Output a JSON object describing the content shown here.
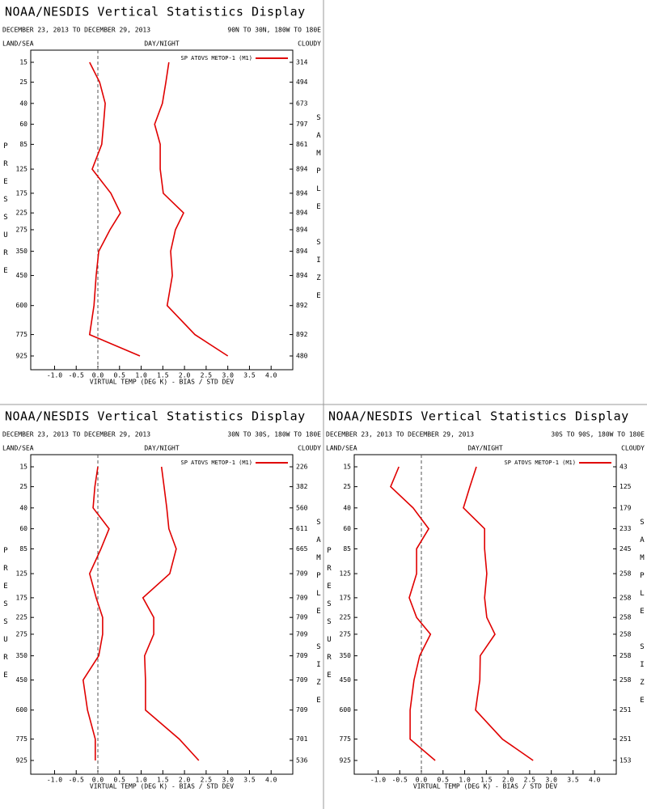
{
  "chart_data": [
    {
      "type": "line",
      "title": "NOAA/NESDIS Vertical Statistics Display",
      "subtitle": "DECEMBER 23, 2013 TO DECEMBER 29, 2013",
      "region": "90N TO 30N, 180W TO 180E",
      "land_sea": "LAND/SEA",
      "day_night": "DAY/NIGHT",
      "cloudy": "CLOUDY",
      "ylabel": "PRESSURE",
      "y2label": "SAMPLE SIZE",
      "xlabel": "VIRTUAL TEMP (DEG K) - BIAS / STD DEV",
      "legend": "SP ATOVS METOP-1 (M1)",
      "y_scale": "power",
      "y_exponent": 0.3,
      "categories": [
        15,
        25,
        40,
        60,
        85,
        125,
        175,
        225,
        275,
        350,
        450,
        600,
        775,
        925
      ],
      "sample_size": [
        314,
        494,
        673,
        797,
        861,
        894,
        894,
        894,
        894,
        894,
        894,
        892,
        892,
        480
      ],
      "xlim": [
        -1.55,
        4.5
      ],
      "xticks": [
        {
          "value": -1,
          "label": "-1.0"
        },
        {
          "value": -0.5,
          "label": "-0.5"
        },
        {
          "value": 0,
          "label": "0.0"
        },
        {
          "value": 0.5,
          "label": "0.5"
        },
        {
          "value": 1,
          "label": "1.0"
        },
        {
          "value": 1.5,
          "label": "1.5"
        },
        {
          "value": 2,
          "label": "2.0"
        },
        {
          "value": 2.5,
          "label": "2.5"
        },
        {
          "value": 3,
          "label": "3.0"
        },
        {
          "value": 3.5,
          "label": "3.5"
        },
        {
          "value": 4,
          "label": "4.0"
        }
      ],
      "zero_line": true,
      "series": [
        {
          "color": "#e00000",
          "values": [
            -0.19,
            0.04,
            0.17,
            0.13,
            0.09,
            -0.13,
            0.3,
            0.52,
            0.28,
            0.02,
            -0.04,
            -0.09,
            -0.19,
            0.97
          ]
        },
        {
          "color": "#e00000",
          "values": [
            1.64,
            1.57,
            1.49,
            1.31,
            1.44,
            1.44,
            1.51,
            1.98,
            1.79,
            1.68,
            1.72,
            1.6,
            2.24,
            3.0
          ]
        }
      ]
    },
    {
      "type": "line",
      "title": "NOAA/NESDIS Vertical Statistics Display",
      "subtitle": "DECEMBER 23, 2013 TO DECEMBER 29, 2013",
      "region": "30N TO 30S, 180W TO 180E",
      "land_sea": "LAND/SEA",
      "day_night": "DAY/NIGHT",
      "cloudy": "CLOUDY",
      "ylabel": "PRESSURE",
      "y2label": "SAMPLE SIZE",
      "xlabel": "VIRTUAL TEMP (DEG K) - BIAS / STD DEV",
      "legend": "SP ATOVS METOP-1 (M1)",
      "y_scale": "power",
      "y_exponent": 0.3,
      "categories": [
        15,
        25,
        40,
        60,
        85,
        125,
        175,
        225,
        275,
        350,
        450,
        600,
        775,
        925
      ],
      "sample_size": [
        226,
        382,
        560,
        611,
        665,
        709,
        709,
        709,
        709,
        709,
        709,
        709,
        701,
        536
      ],
      "xlim": [
        -1.55,
        4.5
      ],
      "xticks": [
        {
          "value": -1,
          "label": "-1.0"
        },
        {
          "value": -0.5,
          "label": "-0.5"
        },
        {
          "value": 0,
          "label": "0.0"
        },
        {
          "value": 0.5,
          "label": "0.5"
        },
        {
          "value": 1,
          "label": "1.0"
        },
        {
          "value": 1.5,
          "label": "1.5"
        },
        {
          "value": 2,
          "label": "2.0"
        },
        {
          "value": 2.5,
          "label": "2.5"
        },
        {
          "value": 3,
          "label": "3.0"
        },
        {
          "value": 3.5,
          "label": "3.5"
        },
        {
          "value": 4,
          "label": "4.0"
        }
      ],
      "zero_line": true,
      "series": [
        {
          "color": "#e00000",
          "values": [
            0.0,
            -0.07,
            -0.11,
            0.26,
            0.07,
            -0.19,
            -0.04,
            0.11,
            0.11,
            0.02,
            -0.34,
            -0.24,
            -0.06,
            -0.06
          ]
        },
        {
          "color": "#e00000",
          "values": [
            1.47,
            1.53,
            1.59,
            1.64,
            1.81,
            1.66,
            1.04,
            1.29,
            1.29,
            1.08,
            1.1,
            1.1,
            1.88,
            2.33
          ]
        }
      ]
    },
    {
      "type": "line",
      "title": "NOAA/NESDIS Vertical Statistics Display",
      "subtitle": "DECEMBER 23, 2013 TO DECEMBER 29, 2013",
      "region": "30S TO 90S, 180W TO 180E",
      "land_sea": "LAND/SEA",
      "day_night": "DAY/NIGHT",
      "cloudy": "CLOUDY",
      "ylabel": "PRESSURE",
      "y2label": "SAMPLE SIZE",
      "xlabel": "VIRTUAL TEMP (DEG K) - BIAS / STD DEV",
      "legend": "SP ATOVS METOP-1 (M1)",
      "y_scale": "power",
      "y_exponent": 0.3,
      "categories": [
        15,
        25,
        40,
        60,
        85,
        125,
        175,
        225,
        275,
        350,
        450,
        600,
        775,
        925
      ],
      "sample_size": [
        43,
        125,
        179,
        233,
        245,
        258,
        258,
        258,
        258,
        258,
        258,
        251,
        251,
        153
      ],
      "xlim": [
        -1.55,
        4.5
      ],
      "xticks": [
        {
          "value": -1,
          "label": "-1.0"
        },
        {
          "value": -0.5,
          "label": "-0.5"
        },
        {
          "value": 0,
          "label": "0.0"
        },
        {
          "value": 0.5,
          "label": "0.5"
        },
        {
          "value": 1,
          "label": "1.0"
        },
        {
          "value": 1.5,
          "label": "1.5"
        },
        {
          "value": 2,
          "label": "2.0"
        },
        {
          "value": 2.5,
          "label": "2.5"
        },
        {
          "value": 3,
          "label": "3.0"
        },
        {
          "value": 3.5,
          "label": "3.5"
        },
        {
          "value": 4,
          "label": "4.0"
        }
      ],
      "zero_line": true,
      "series": [
        {
          "color": "#e00000",
          "values": [
            -0.52,
            -0.71,
            -0.19,
            0.17,
            -0.11,
            -0.11,
            -0.28,
            -0.11,
            0.21,
            -0.04,
            -0.17,
            -0.26,
            -0.26,
            0.32
          ]
        },
        {
          "color": "#e00000",
          "values": [
            1.27,
            1.12,
            0.97,
            1.46,
            1.46,
            1.51,
            1.46,
            1.51,
            1.7,
            1.36,
            1.35,
            1.25,
            1.87,
            2.58
          ]
        }
      ]
    }
  ]
}
